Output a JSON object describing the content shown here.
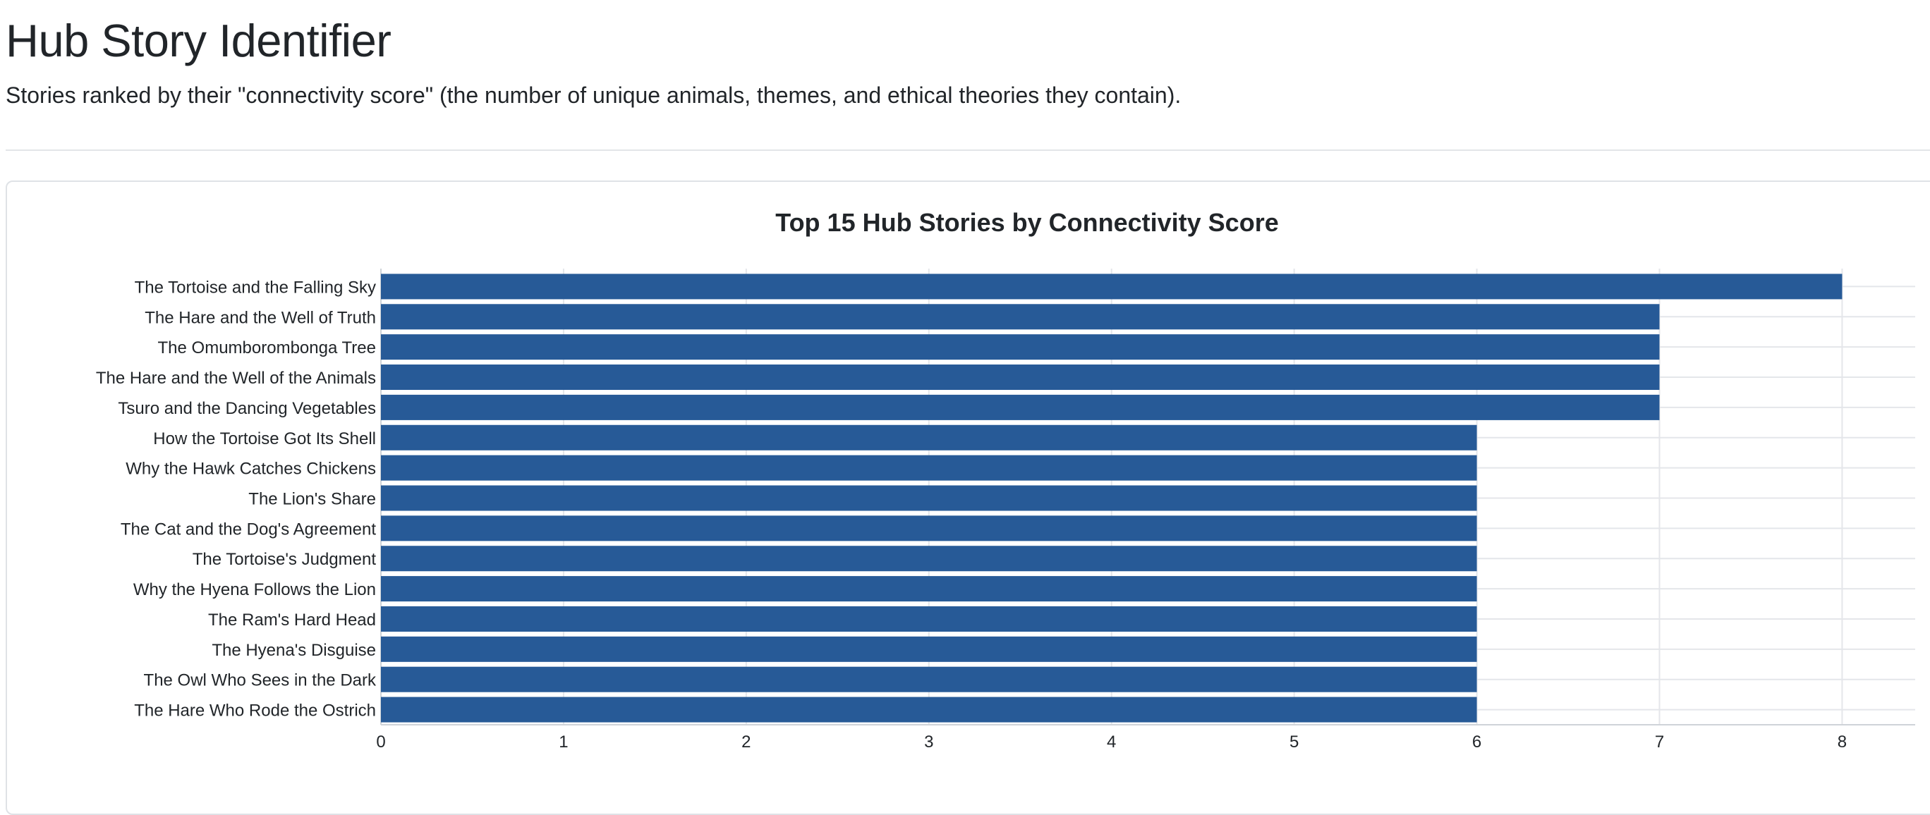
{
  "header": {
    "title": "Hub Story Identifier",
    "subtitle": "Stories ranked by their \"connectivity score\" (the number of unique animals, themes, and ethical theories they contain)."
  },
  "colors": {
    "bar": "#275a97",
    "grid": "#e4e6ea",
    "text": "#212529"
  },
  "chart_data": {
    "type": "bar",
    "orientation": "horizontal",
    "title": "Top 15 Hub Stories by Connectivity Score",
    "xlabel": "",
    "ylabel": "",
    "xlim": [
      0,
      8.4
    ],
    "x_ticks": [
      0,
      1,
      2,
      3,
      4,
      5,
      6,
      7,
      8
    ],
    "grid": true,
    "legend": "none",
    "categories": [
      "The Tortoise and the Falling Sky",
      "The Hare and the Well of Truth",
      "The Omumborombonga Tree",
      "The Hare and the Well of the Animals",
      "Tsuro and the Dancing Vegetables",
      "How the Tortoise Got Its Shell",
      "Why the Hawk Catches Chickens",
      "The Lion's Share",
      "The Cat and the Dog's Agreement",
      "The Tortoise's Judgment",
      "Why the Hyena Follows the Lion",
      "The Ram's Hard Head",
      "The Hyena's Disguise",
      "The Owl Who Sees in the Dark",
      "The Hare Who Rode the Ostrich"
    ],
    "values": [
      8,
      7,
      7,
      7,
      7,
      6,
      6,
      6,
      6,
      6,
      6,
      6,
      6,
      6,
      6
    ]
  }
}
